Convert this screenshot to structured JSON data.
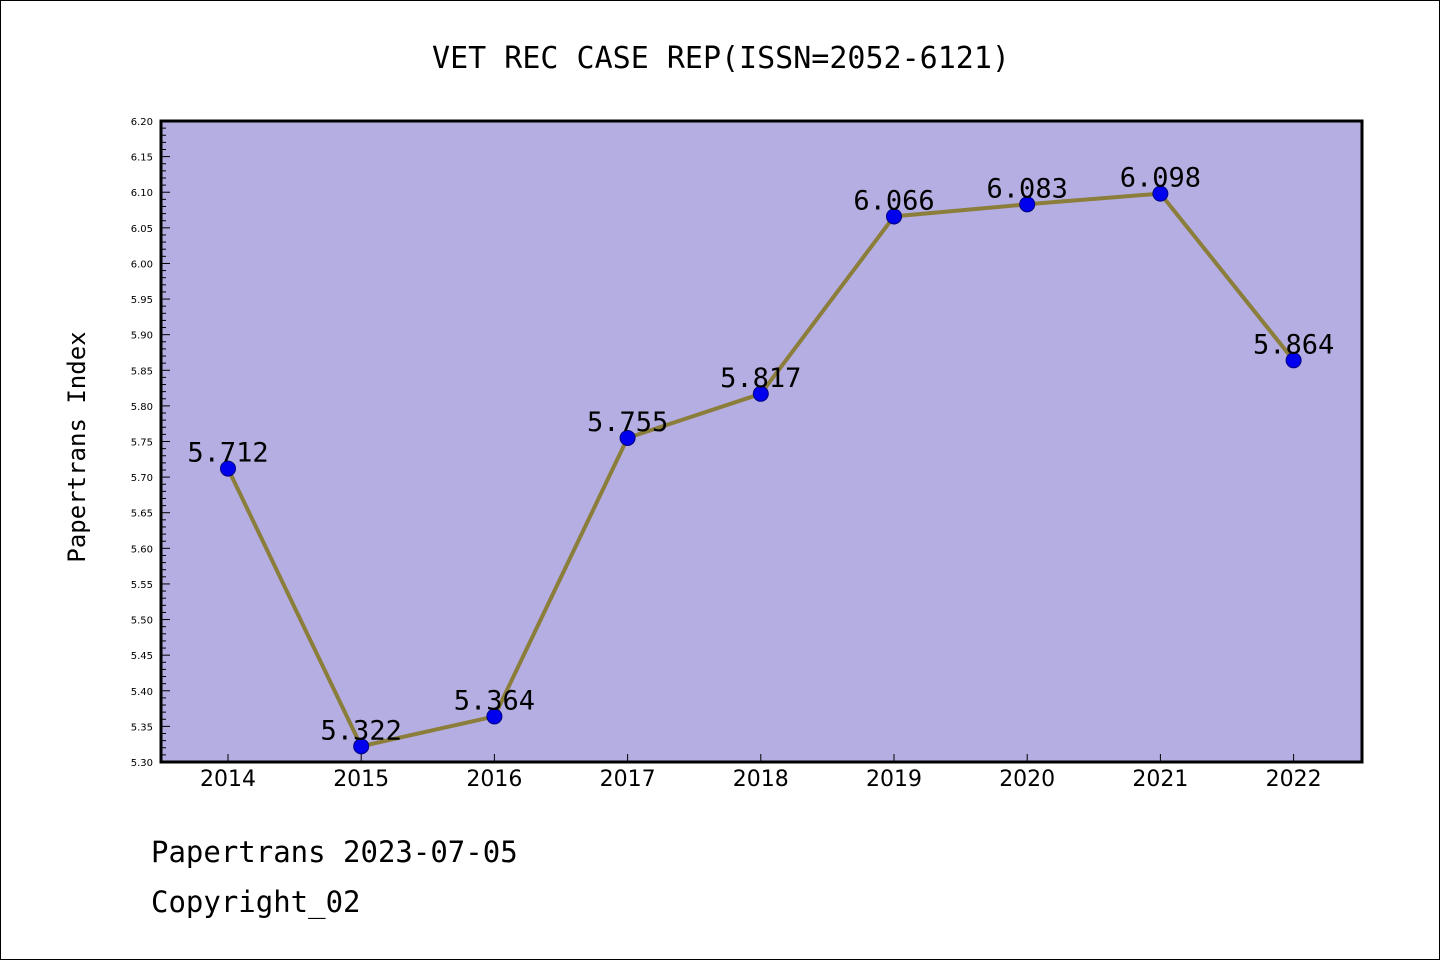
{
  "chart_data": {
    "type": "line",
    "title": "VET REC CASE REP(ISSN=2052-6121)",
    "xlabel": "",
    "ylabel": "Papertrans Index",
    "categories": [
      "2014",
      "2015",
      "2016",
      "2017",
      "2018",
      "2019",
      "2020",
      "2021",
      "2022"
    ],
    "series": [
      {
        "values": [
          5.712,
          5.322,
          5.364,
          5.755,
          5.817,
          6.066,
          6.083,
          6.098,
          5.864
        ],
        "labels": [
          "5.712",
          "5.322",
          "5.364",
          "5.755",
          "5.817",
          "6.066",
          "6.083",
          "6.098",
          "5.864"
        ]
      }
    ],
    "ylim": [
      5.3,
      6.2
    ],
    "yticks": [
      "5.30",
      "5.35",
      "5.40",
      "5.45",
      "5.50",
      "5.55",
      "5.60",
      "5.65",
      "5.70",
      "5.75",
      "5.80",
      "5.85",
      "5.90",
      "5.95",
      "6.00",
      "6.05",
      "6.10",
      "6.15",
      "6.20"
    ],
    "grid": false,
    "legend": "none"
  },
  "footer": {
    "line1": "Papertrans 2023-07-05",
    "line2": "Copyright_02"
  },
  "colors": {
    "plot_background": "#b5aee2",
    "line": "#8b7d3a",
    "marker": "#0000ee",
    "marker_edge": "#000080",
    "axis": "#000000"
  }
}
